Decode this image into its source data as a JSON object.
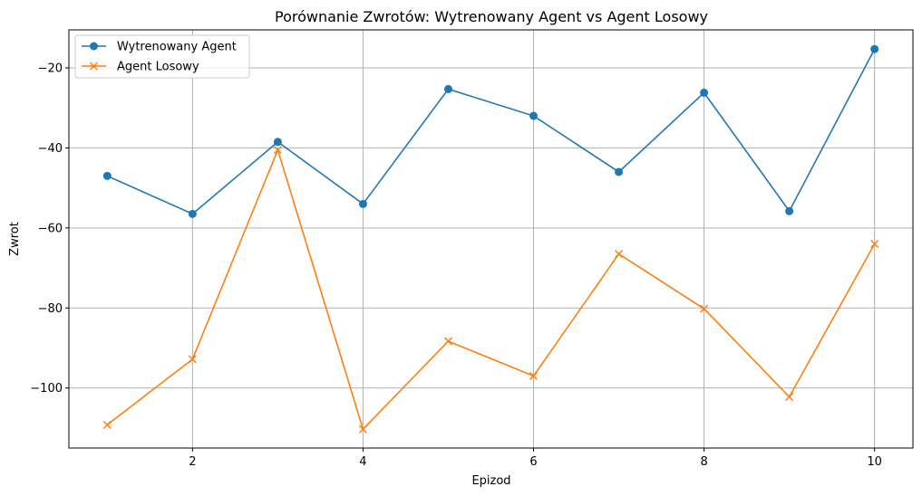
{
  "chart_data": {
    "type": "line",
    "title": "Porównanie Zwrotów: Wytrenowany Agent vs Agent Losowy",
    "xlabel": "Epizod",
    "ylabel": "Zwrot",
    "x": [
      1,
      2,
      3,
      4,
      5,
      6,
      7,
      8,
      9,
      10
    ],
    "xlim": [
      0.55,
      10.45
    ],
    "ylim": [
      -115,
      -10.5
    ],
    "xticks": [
      2,
      4,
      6,
      8,
      10
    ],
    "yticks": [
      -100,
      -80,
      -60,
      -40,
      -20
    ],
    "xtick_labels": [
      "2",
      "4",
      "6",
      "8",
      "10"
    ],
    "ytick_labels": [
      "−100",
      "−80",
      "−60",
      "−40",
      "−20"
    ],
    "grid": true,
    "legend_position": "upper left",
    "series": [
      {
        "name": "Wytrenowany Agent",
        "color": "#1f77b4",
        "marker": "circle",
        "values": [
          -47,
          -56.5,
          -38.5,
          -54,
          -25.3,
          -32,
          -46,
          -26.2,
          -55.8,
          -15.3
        ]
      },
      {
        "name": "Agent Losowy",
        "color": "#ff7f0e",
        "marker": "x",
        "values": [
          -109.2,
          -92.8,
          -40.5,
          -110.3,
          -88.3,
          -97,
          -66.5,
          -80.2,
          -102.2,
          -64
        ]
      }
    ]
  }
}
